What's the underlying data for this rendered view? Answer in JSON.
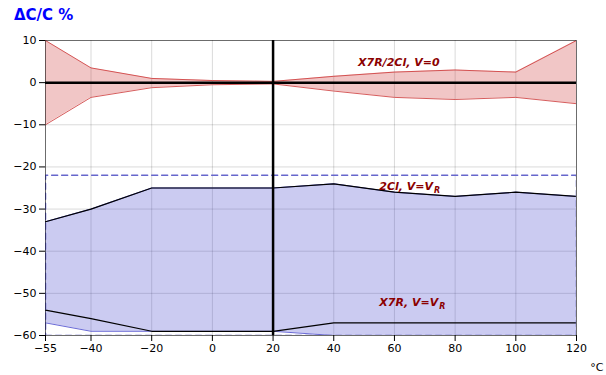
{
  "chart_data": {
    "type": "area",
    "title": "ΔC/C %",
    "xlabel": "°C",
    "x": [
      -55,
      -40,
      -20,
      0,
      20,
      40,
      60,
      80,
      100,
      120
    ],
    "xlim": [
      -55,
      120
    ],
    "ylim": [
      -60,
      10
    ],
    "xticks": [
      -55,
      -40,
      -20,
      0,
      20,
      40,
      60,
      80,
      100,
      120
    ],
    "yticks": [
      -60,
      -50,
      -40,
      -30,
      -20,
      -10,
      0,
      10
    ],
    "grid": true,
    "series": [
      {
        "type": "band",
        "color": "#cc3333",
        "upper": [
          10,
          3.5,
          1.0,
          0.5,
          0.3,
          1.5,
          2.5,
          3.0,
          2.5,
          10
        ],
        "lower": [
          -10,
          -3.5,
          -1.2,
          -0.5,
          -0.3,
          -2.0,
          -3.5,
          -4.0,
          -3.5,
          -5
        ]
      },
      {
        "type": "band",
        "color": "#4444cc",
        "upper": [
          -33,
          -30,
          -25,
          -25,
          -25,
          -24,
          -26,
          -27,
          -26,
          -27
        ],
        "lower": [
          -57,
          -59,
          -59,
          -59,
          -59,
          -60,
          -60,
          -60,
          -60,
          -60
        ]
      },
      {
        "type": "line",
        "color": "#000000",
        "values": [
          -33,
          -30,
          -25,
          -25,
          -25,
          -24,
          -26,
          -27,
          -26,
          -27
        ]
      },
      {
        "type": "line",
        "color": "#000000",
        "values": [
          -54,
          -56,
          -59,
          -59,
          -59,
          -57,
          -57,
          -57,
          -57,
          -57
        ]
      }
    ],
    "horizontal_line_y": 0,
    "vertical_line_x": 20,
    "dashed_rect": {
      "x0": -55,
      "x1": 120,
      "y0": -60,
      "y1": -22,
      "color": "#6666cc",
      "line_style": "dashed"
    },
    "annotations": [
      {
        "x": 48,
        "y": 4.0,
        "text": "X7R/2Cl, V=0",
        "color": "#8b0000"
      },
      {
        "x": 55,
        "y": -25.5,
        "text": "2Cl, V=V",
        "subscript": "R",
        "color": "#8b0000"
      },
      {
        "x": 55,
        "y": -53.0,
        "text": "X7R, V=V",
        "subscript": "R",
        "color": "#8b0000"
      }
    ]
  }
}
